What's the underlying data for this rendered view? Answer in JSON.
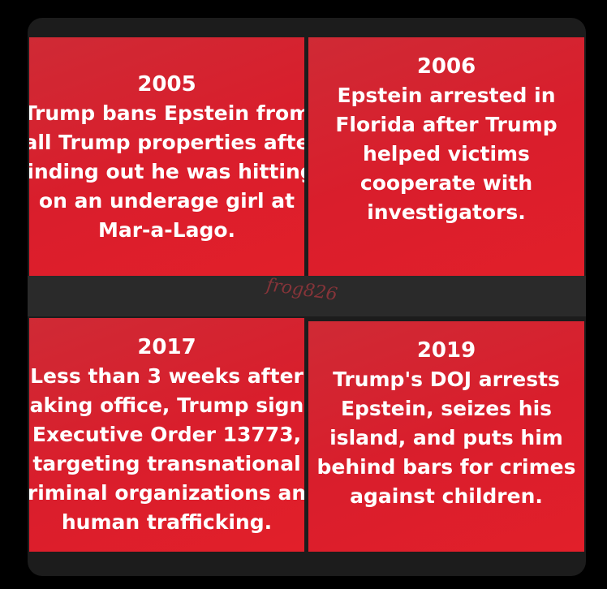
{
  "panels": [
    {
      "year": "2005",
      "lines": [
        "Trump bans Epstein from",
        "all Trump properties afte",
        "finding out he was hitting",
        "on an underage girl at",
        "Mar-a-Lago."
      ]
    },
    {
      "year": "2006",
      "lines": [
        "Epstein arrested in",
        "Florida after Trump",
        "helped victims",
        "cooperate with",
        "investigators."
      ]
    },
    {
      "year": "2017",
      "lines": [
        "Less than 3 weeks after",
        "aking office, Trump sign",
        "Executive Order 13773,",
        "targeting transnational",
        "riminal organizations an",
        "human trafficking."
      ]
    },
    {
      "year": "2019",
      "lines": [
        "Trump's DOJ arrests",
        "Epstein, seizes his",
        "island, and puts him",
        "behind bars for crimes",
        "against children."
      ]
    }
  ],
  "watermark": "frog826"
}
